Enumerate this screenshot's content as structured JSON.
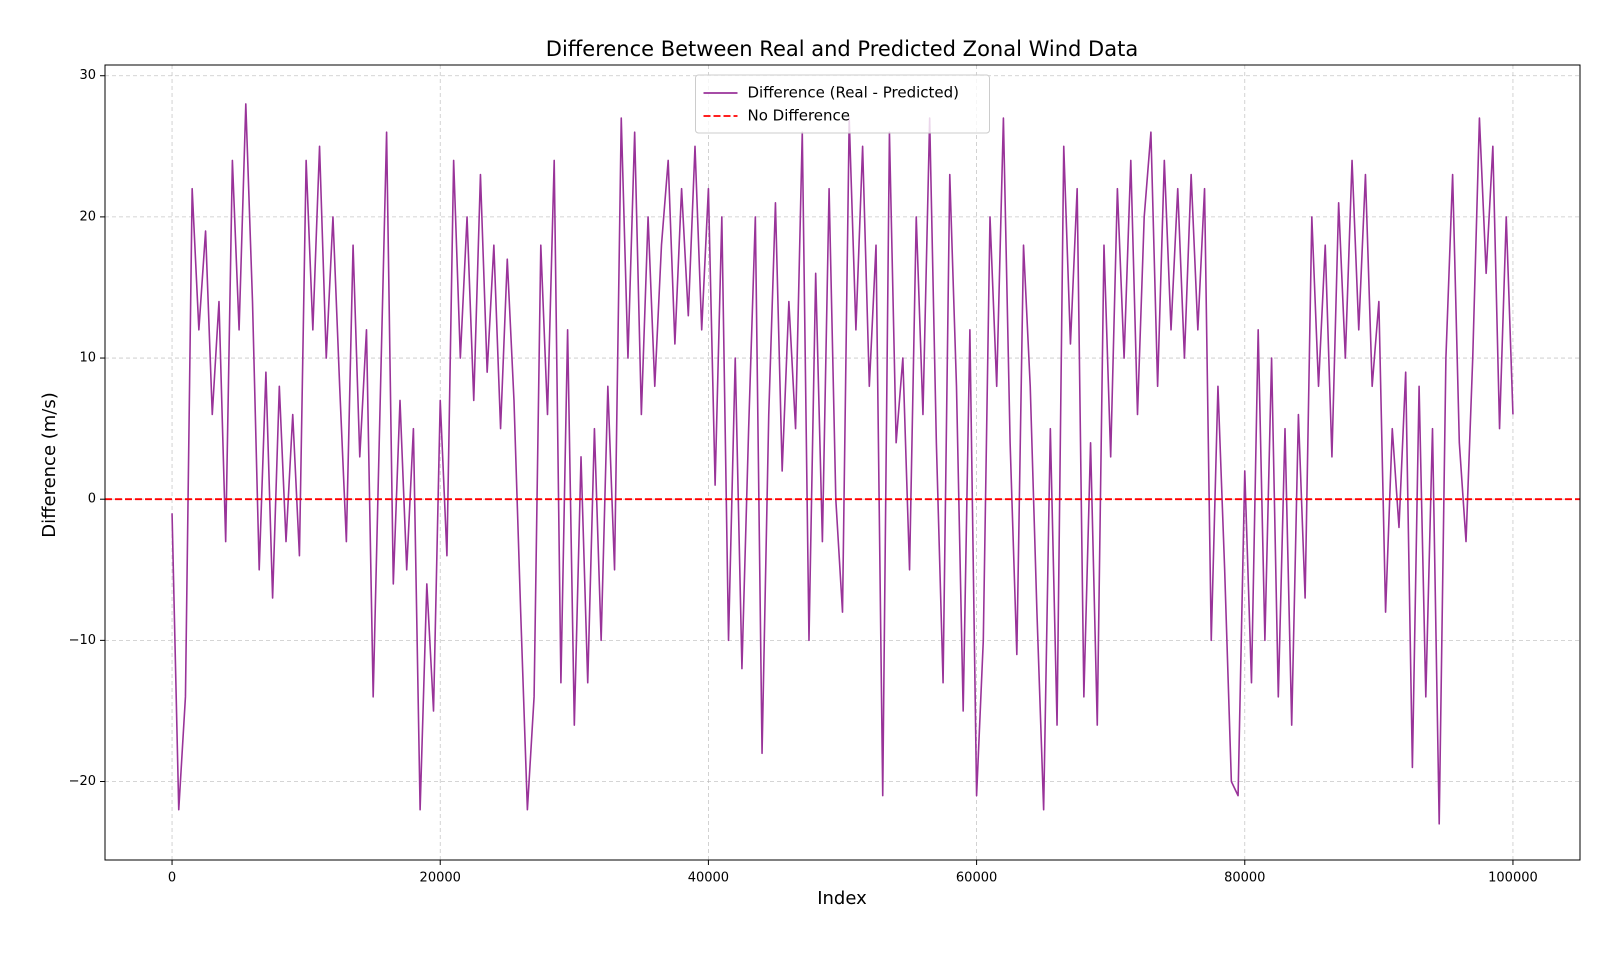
{
  "chart_data": {
    "type": "line",
    "title": "Difference Between Real and Predicted Zonal Wind Data",
    "x_label": "Index",
    "y_label": "Difference (m/s)",
    "x": [
      0,
      500,
      1000,
      1500,
      2000,
      2500,
      3000,
      3500,
      4000,
      4500,
      5000,
      5500,
      6000,
      6500,
      7000,
      7500,
      8000,
      8500,
      9000,
      9500,
      10000,
      10500,
      11000,
      11500,
      12000,
      12500,
      13000,
      13500,
      14000,
      14500,
      15000,
      15500,
      16000,
      16500,
      17000,
      17500,
      18000,
      18500,
      19000,
      19500,
      20000,
      20500,
      21000,
      21500,
      22000,
      22500,
      23000,
      23500,
      24000,
      24500,
      25000,
      25500,
      26000,
      26500,
      27000,
      27500,
      28000,
      28500,
      29000,
      29500,
      30000,
      30500,
      31000,
      31500,
      32000,
      32500,
      33000,
      33500,
      34000,
      34500,
      35000,
      35500,
      36000,
      36500,
      37000,
      37500,
      38000,
      38500,
      39000,
      39500,
      40000,
      40500,
      41000,
      41500,
      42000,
      42500,
      43000,
      43500,
      44000,
      44500,
      45000,
      45500,
      46000,
      46500,
      47000,
      47500,
      48000,
      48500,
      49000,
      49500,
      50000,
      50500,
      51000,
      51500,
      52000,
      52500,
      53000,
      53500,
      54000,
      54500,
      55000,
      55500,
      56000,
      56500,
      57000,
      57500,
      58000,
      58500,
      59000,
      59500,
      60000,
      60500,
      61000,
      61500,
      62000,
      62500,
      63000,
      63500,
      64000,
      64500,
      65000,
      65500,
      66000,
      66500,
      67000,
      67500,
      68000,
      68500,
      69000,
      69500,
      70000,
      70500,
      71000,
      71500,
      72000,
      72500,
      73000,
      73500,
      74000,
      74500,
      75000,
      75500,
      76000,
      76500,
      77000,
      77500,
      78000,
      78500,
      79000,
      79500,
      80000,
      80500,
      81000,
      81500,
      82000,
      82500,
      83000,
      83500,
      84000,
      84500,
      85000,
      85500,
      86000,
      86500,
      87000,
      87500,
      88000,
      88500,
      89000,
      89500,
      90000,
      90500,
      91000,
      91500,
      92000,
      92500,
      93000,
      93500,
      94000,
      94500,
      95000,
      95500,
      96000,
      96500,
      97000,
      97500,
      98000,
      98500,
      99000,
      99500,
      100000
    ],
    "series": [
      {
        "name": "Difference (Real - Predicted)",
        "color": "#993399",
        "values": [
          -1,
          -22,
          -14,
          22,
          12,
          19,
          6,
          14,
          -3,
          24,
          12,
          28,
          14,
          -5,
          9,
          -7,
          8,
          -3,
          6,
          -4,
          24,
          12,
          25,
          10,
          20,
          8,
          -3,
          18,
          3,
          12,
          -14,
          6,
          26,
          -6,
          7,
          -5,
          5,
          -22,
          -6,
          -15,
          7,
          -4,
          24,
          10,
          20,
          7,
          23,
          9,
          18,
          5,
          17,
          7,
          -8,
          -22,
          -14,
          18,
          6,
          24,
          -13,
          12,
          -16,
          3,
          -13,
          5,
          -10,
          8,
          -5,
          27,
          10,
          26,
          6,
          20,
          8,
          18,
          24,
          11,
          22,
          13,
          25,
          12,
          22,
          1,
          20,
          -10,
          10,
          -12,
          5,
          20,
          -18,
          6,
          21,
          2,
          14,
          5,
          26,
          -10,
          16,
          -3,
          22,
          0,
          -8,
          27,
          12,
          25,
          8,
          18,
          -21,
          26,
          4,
          10,
          -5,
          20,
          6,
          27,
          4,
          -13,
          23,
          8,
          -15,
          12,
          -21,
          -10,
          20,
          8,
          27,
          4,
          -11,
          18,
          8,
          -8,
          -22,
          5,
          -16,
          25,
          11,
          22,
          -14,
          4,
          -16,
          18,
          3,
          22,
          10,
          24,
          6,
          20,
          26,
          8,
          24,
          12,
          22,
          10,
          23,
          12,
          22,
          -10,
          8,
          -5,
          -20,
          -21,
          2,
          -13,
          12,
          -10,
          10,
          -14,
          5,
          -16,
          6,
          -7,
          20,
          8,
          18,
          3,
          21,
          10,
          24,
          12,
          23,
          8,
          14,
          -8,
          5,
          -2,
          9,
          -19,
          8,
          -14,
          5,
          -23,
          10,
          23,
          4,
          -3,
          10,
          27,
          16,
          25,
          5,
          20,
          6
        ]
      }
    ],
    "hlines": [
      {
        "name": "No Difference",
        "value": 0,
        "color": "#ff0000"
      }
    ],
    "xlim": [
      -5000,
      105000
    ],
    "ylim": [
      -25.56,
      30.76
    ],
    "xticks": [
      0,
      20000,
      40000,
      60000,
      80000,
      100000
    ],
    "yticks": [
      {
        "value": -20,
        "label": "−20"
      },
      {
        "value": -10,
        "label": "−10"
      },
      0,
      10,
      20,
      30
    ],
    "grid": true,
    "legend": "upper center"
  }
}
